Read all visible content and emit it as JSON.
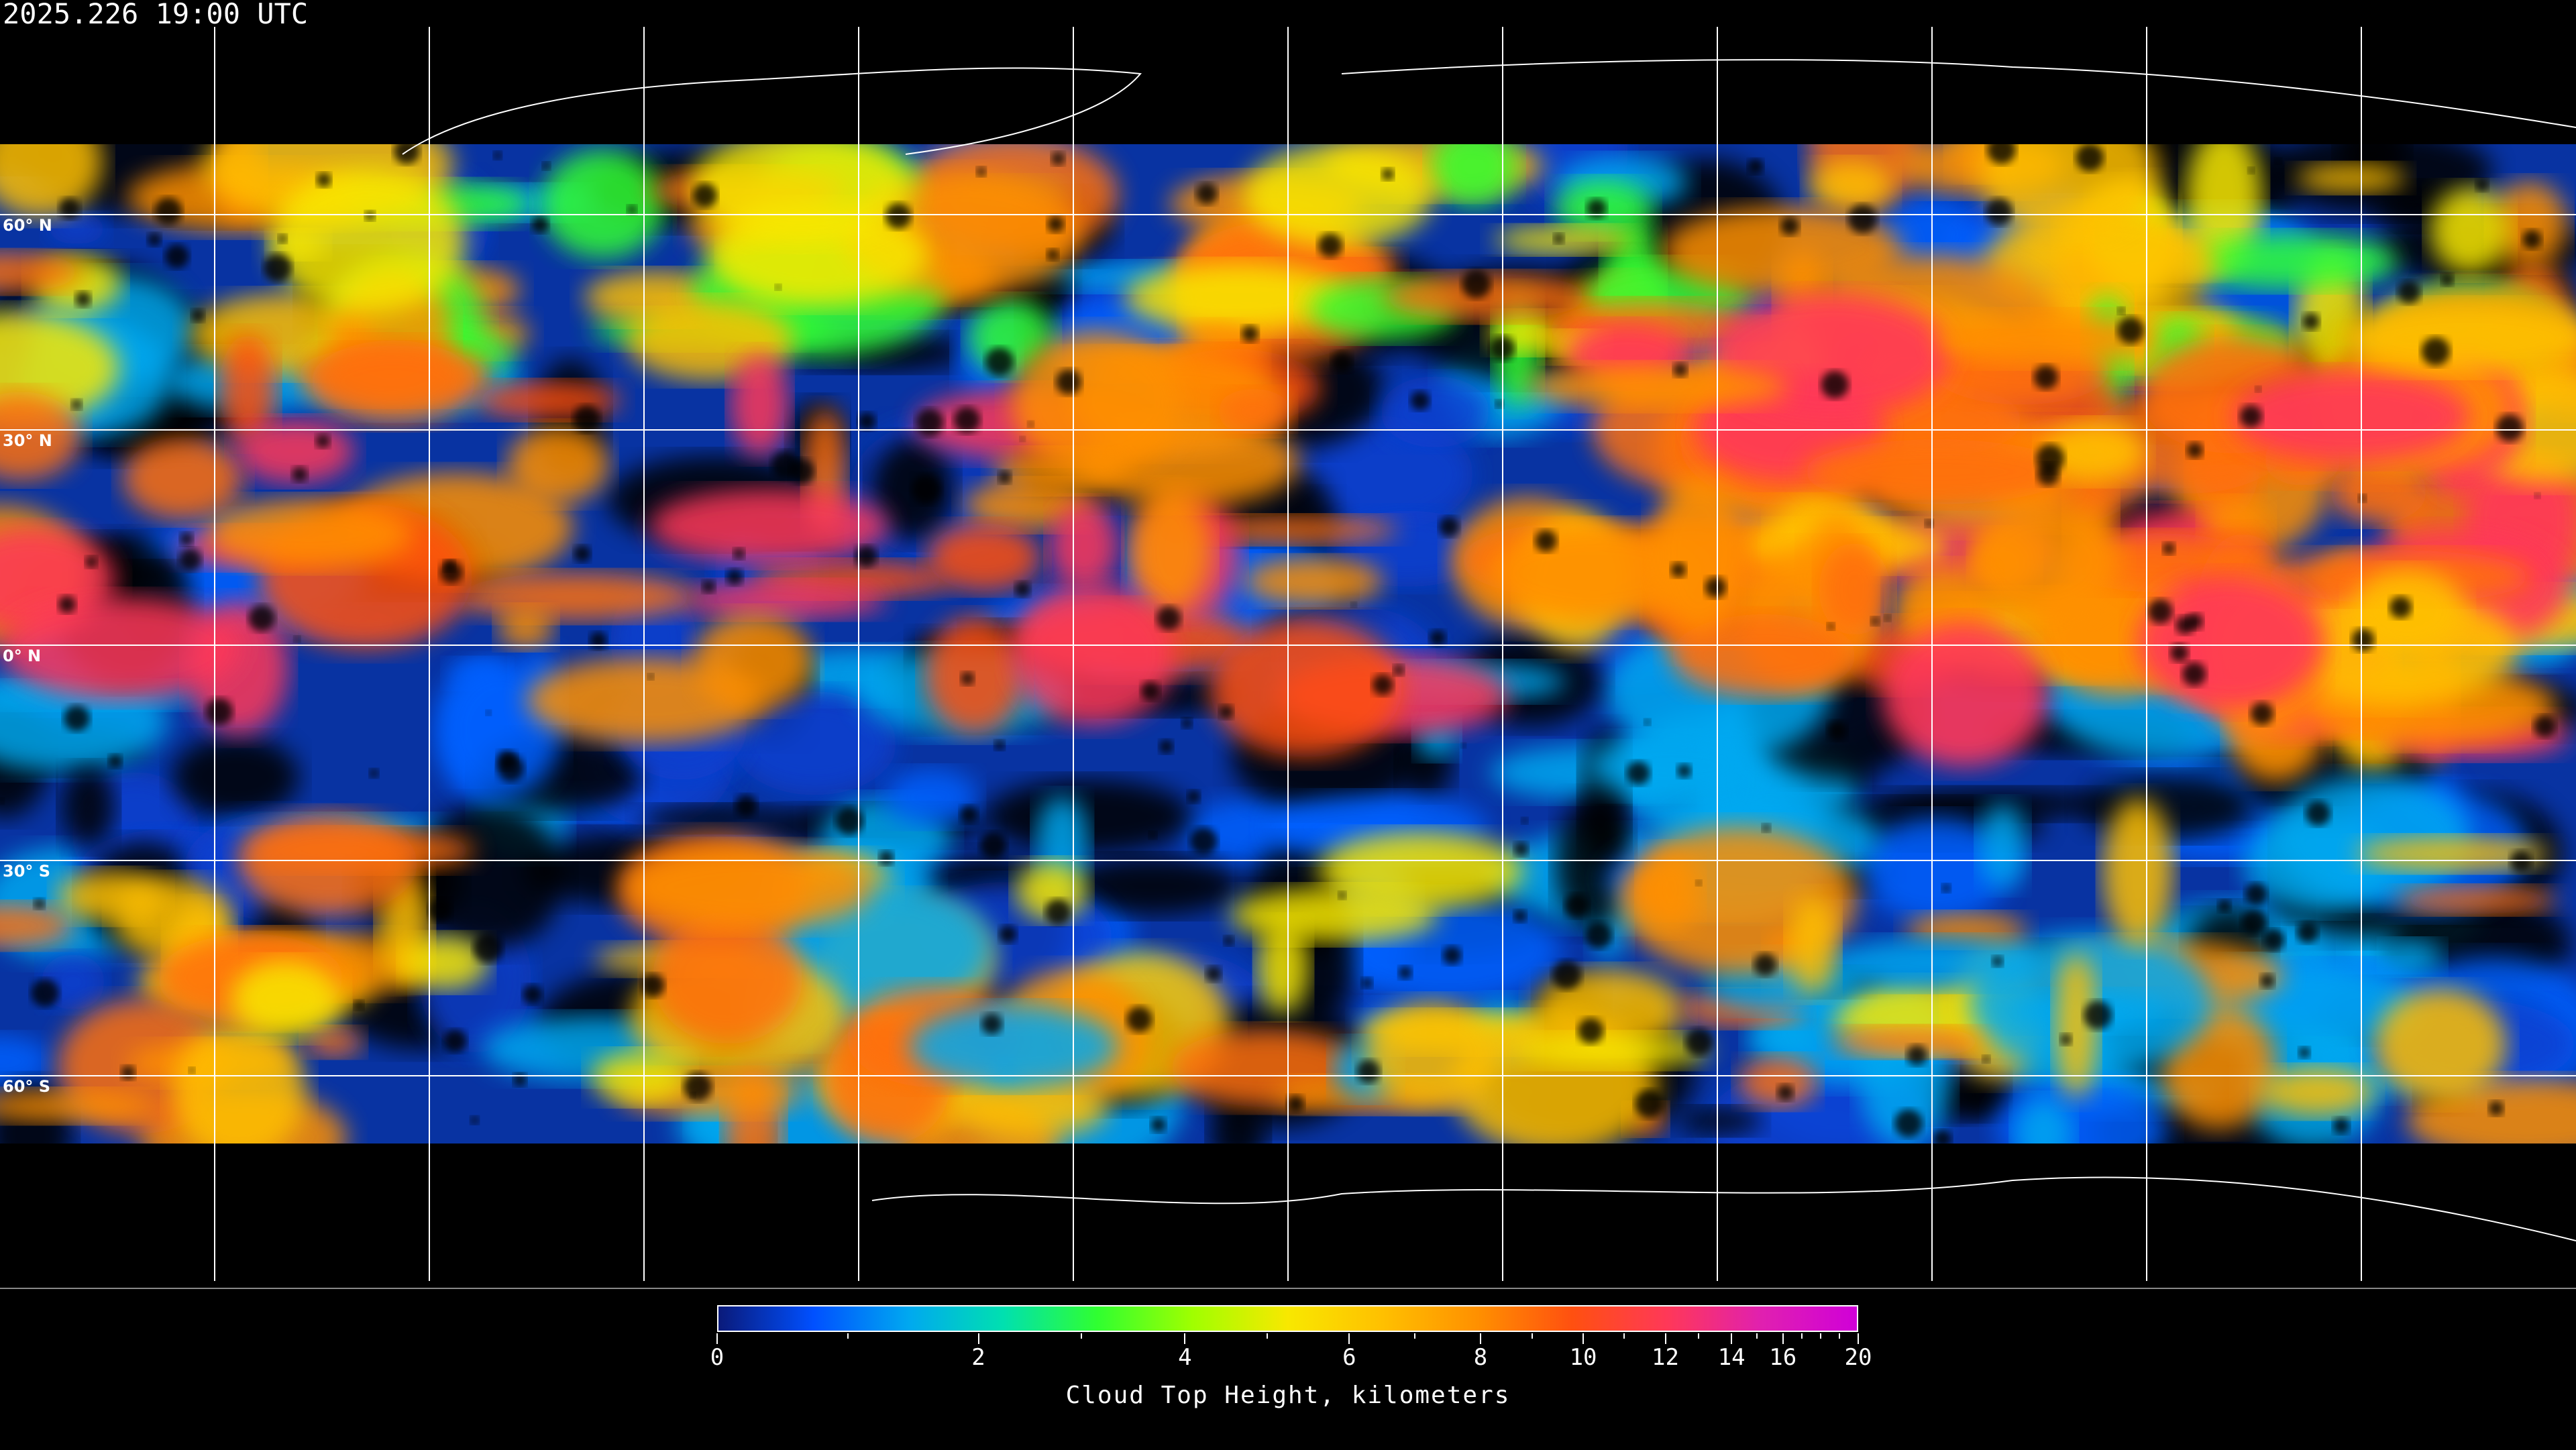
{
  "header": {
    "timestamp": "2025.226 19:00 UTC"
  },
  "map": {
    "projection": "equirectangular",
    "graticule_spacing_degrees": 30,
    "latitude_labels": [
      "60° N",
      "30° N",
      "0° N",
      "30° S",
      "60° S"
    ],
    "latitude_values": [
      60,
      30,
      0,
      -30,
      -60
    ],
    "coastlines": true
  },
  "colorbar": {
    "title": "Cloud Top Height, kilometers",
    "tick_labels": [
      "0",
      "2",
      "4",
      "6",
      "8",
      "10",
      "12",
      "14",
      "16",
      "20"
    ],
    "range": [
      0,
      20
    ],
    "colors": [
      "#0a1a7a",
      "#0050ff",
      "#00a8f0",
      "#00e0b0",
      "#30ff30",
      "#a0ff00",
      "#f8e800",
      "#ffc000",
      "#ff9000",
      "#ff5010",
      "#ff3858",
      "#e020b0",
      "#d000d8"
    ]
  }
}
